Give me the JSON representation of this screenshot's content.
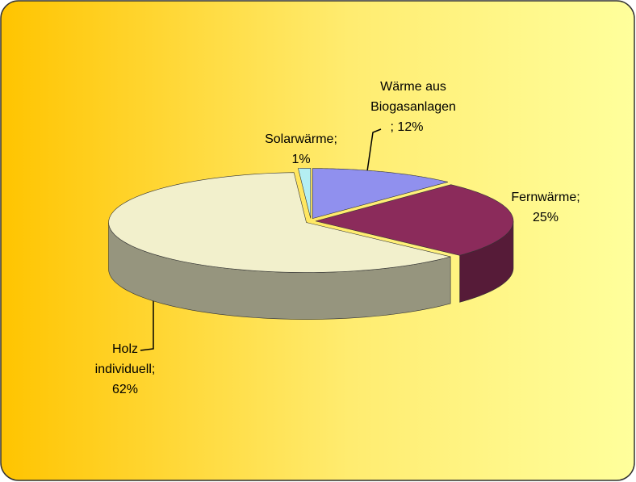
{
  "chart_data": {
    "type": "pie3d",
    "labels": [
      [
        "Wärme aus",
        "Biogasanlagen",
        "; 12%"
      ],
      [
        "Fernwärme;",
        "25%"
      ],
      [
        "Holz",
        "individuell;",
        "62%"
      ],
      [
        "Solarwärme;",
        "1%"
      ]
    ],
    "values": [
      12,
      25,
      62,
      1
    ],
    "colors": [
      "#9090ee",
      "#8b2b5b",
      "#f2f0cc",
      "#b4eef2"
    ]
  }
}
